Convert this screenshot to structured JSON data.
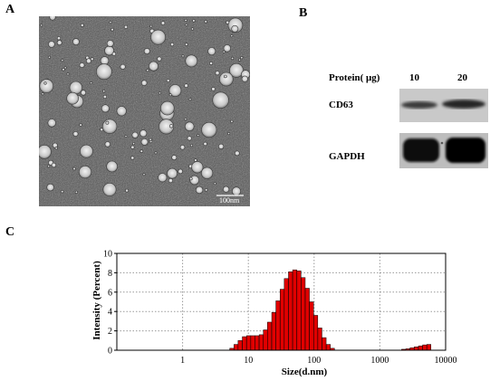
{
  "panels": {
    "a": "A",
    "b": "B",
    "c": "C"
  },
  "tem": {
    "scale_label": "100nm"
  },
  "western_blot": {
    "protein_label": "Protein( μg)",
    "lanes": [
      "10",
      "20"
    ],
    "rows": [
      "CD63",
      "GAPDH"
    ]
  },
  "chart_data": {
    "type": "bar",
    "xlabel": "Size(d.nm)",
    "ylabel": "Intensity (Percent)",
    "x_scale": "log",
    "xlim": [
      0.1,
      10000
    ],
    "ylim": [
      0,
      10
    ],
    "x_ticks": [
      "0.1",
      "1",
      "10",
      "100",
      "1000",
      "10000"
    ],
    "y_ticks": [
      "0",
      "2",
      "4",
      "6",
      "8",
      "10"
    ],
    "grid": true,
    "bar_color": "#e00000",
    "size_d_nm": [
      5.6,
      6.5,
      7.5,
      8.7,
      10.1,
      11.7,
      13.5,
      15.7,
      18.2,
      21.0,
      24.4,
      28.2,
      32.7,
      37.8,
      43.8,
      50.7,
      58.8,
      68.1,
      78.8,
      91.3,
      105.7,
      122.4,
      141.8,
      164.2,
      190.1,
      2300,
      2670,
      3090,
      3580,
      4150,
      4800,
      5560
    ],
    "intensity_percent": [
      0.2,
      0.6,
      1.0,
      1.4,
      1.5,
      1.5,
      1.5,
      1.6,
      2.1,
      2.9,
      3.9,
      5.1,
      6.3,
      7.4,
      8.1,
      8.3,
      8.2,
      7.5,
      6.4,
      5.0,
      3.6,
      2.3,
      1.3,
      0.6,
      0.2,
      0.1,
      0.15,
      0.25,
      0.35,
      0.45,
      0.55,
      0.6
    ]
  }
}
